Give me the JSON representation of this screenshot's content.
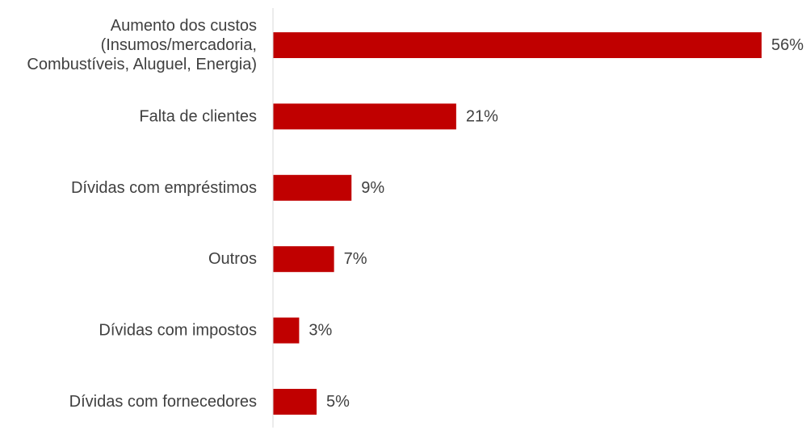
{
  "chart_data": {
    "type": "bar",
    "orientation": "horizontal",
    "categories": [
      [
        "Aumento dos custos",
        "(Insumos/mercadoria,",
        "Combustíveis, Aluguel, Energia)"
      ],
      [
        "Falta de clientes"
      ],
      [
        "Dívidas com empréstimos"
      ],
      [
        "Outros"
      ],
      [
        "Dívidas com impostos"
      ],
      [
        "Dívidas com fornecedores"
      ]
    ],
    "values": [
      56,
      21,
      9,
      7,
      3,
      5
    ],
    "data_labels": [
      "56%",
      "21%",
      "9%",
      "7%",
      "3%",
      "5%"
    ],
    "unit": "%",
    "xlim": [
      0,
      56
    ],
    "grid": false,
    "legend": "none",
    "colors": {
      "bar": "#C00000",
      "axis": "#d9d9d9",
      "text": "#404040"
    }
  }
}
